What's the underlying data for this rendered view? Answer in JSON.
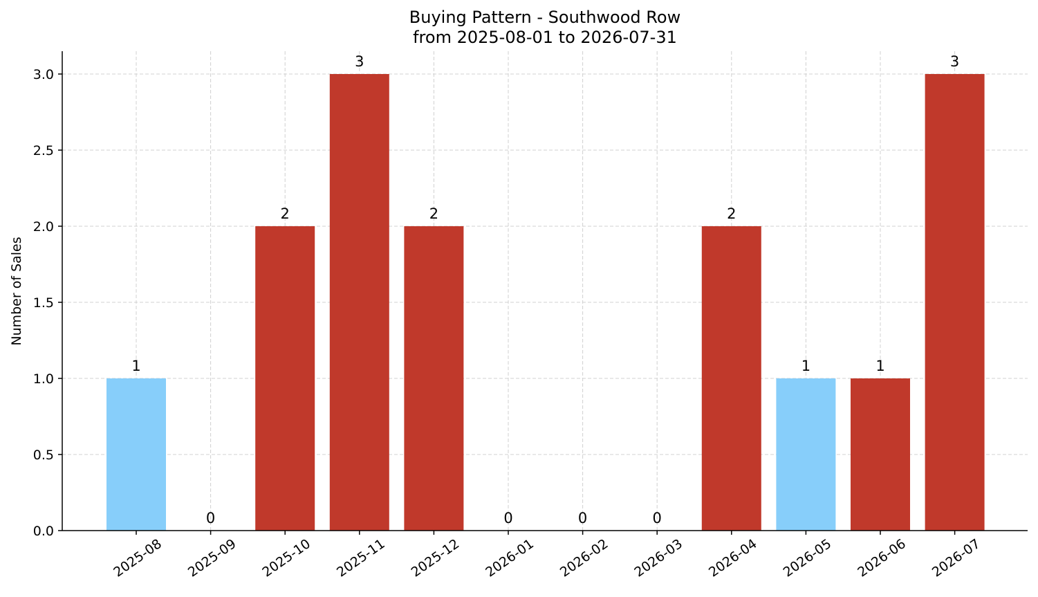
{
  "chart_data": {
    "type": "bar",
    "title": "Buying Pattern - Southwood Row",
    "subtitle": "from 2025-08-01 to 2026-07-31",
    "xlabel": "",
    "ylabel": "Number of Sales",
    "categories": [
      "2025-08",
      "2025-09",
      "2025-10",
      "2025-11",
      "2025-12",
      "2026-01",
      "2026-02",
      "2026-03",
      "2026-04",
      "2026-05",
      "2026-06",
      "2026-07"
    ],
    "values": [
      1,
      0,
      2,
      3,
      2,
      0,
      0,
      0,
      2,
      1,
      1,
      3
    ],
    "value_labels": [
      "1",
      "0",
      "2",
      "3",
      "2",
      "0",
      "0",
      "0",
      "2",
      "1",
      "1",
      "3"
    ],
    "bar_colors": [
      "#87cefa",
      "#87cefa",
      "#c0392b",
      "#c0392b",
      "#c0392b",
      "#87cefa",
      "#87cefa",
      "#87cefa",
      "#c0392b",
      "#87cefa",
      "#c0392b",
      "#c0392b"
    ],
    "yticks": [
      0.0,
      0.5,
      1.0,
      1.5,
      2.0,
      2.5,
      3.0
    ],
    "ytick_labels": [
      "0.0",
      "0.5",
      "1.0",
      "1.5",
      "2.0",
      "2.5",
      "3.0"
    ],
    "ylim": [
      0,
      3.15
    ],
    "grid": true,
    "legend": false
  }
}
